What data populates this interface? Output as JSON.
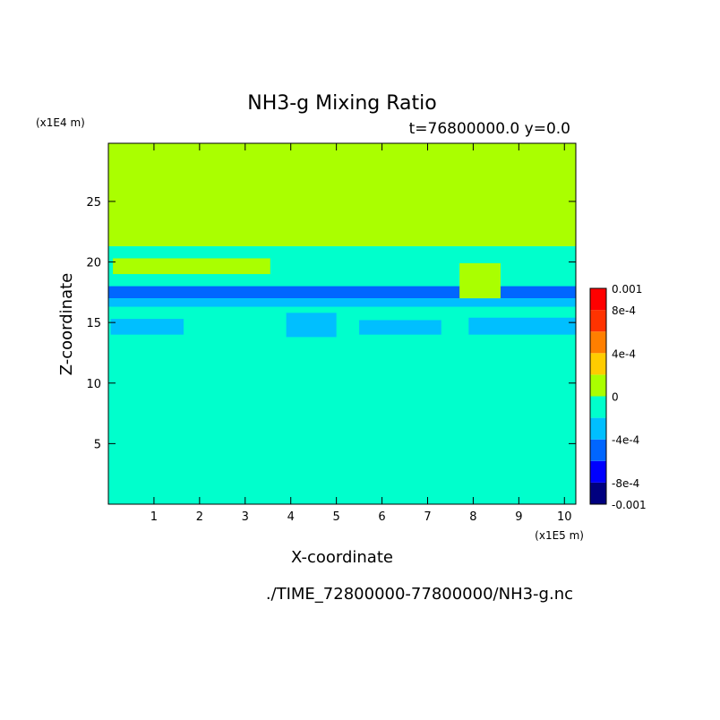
{
  "chart_data": {
    "type": "heatmap",
    "title": "NH3-g Mixing Ratio",
    "subtitle": "t=76800000.0 y=0.0",
    "xlabel": "X-coordinate",
    "ylabel": "Z-coordinate",
    "x_unit": "(x1E5 m)",
    "y_unit": "(x1E4 m)",
    "xlim": [
      0,
      10.25
    ],
    "ylim": [
      0,
      29.8
    ],
    "xticks": [
      1,
      2,
      3,
      4,
      5,
      6,
      7,
      8,
      9,
      10
    ],
    "yticks": [
      5,
      10,
      15,
      20,
      25
    ],
    "footer": "./TIME_72800000-77800000/NH3-g.nc",
    "colorbar": {
      "labels": [
        "0.001",
        "8e-4",
        "4e-4",
        "0",
        "-4e-4",
        "-8e-4",
        "-0.001"
      ],
      "label_values": [
        0.001,
        0.0008,
        0.0004,
        0,
        -0.0004,
        -0.0008,
        -0.001
      ],
      "levels": [
        -0.001,
        -0.0008,
        -0.0006,
        -0.0004,
        -0.0002,
        0,
        0.0002,
        0.0004,
        0.0006,
        0.0008,
        0.001
      ],
      "colors": [
        "#00007f",
        "#0000ff",
        "#0066ff",
        "#00bfff",
        "#00ffcc",
        "#aaff00",
        "#ffcc00",
        "#ff7f00",
        "#ff3300",
        "#ff0000"
      ]
    },
    "regions": [
      {
        "level": "0 to 2e-4",
        "color": "#aaff00",
        "z_range": [
          21.3,
          29.8
        ],
        "x_range": [
          0,
          10.25
        ]
      },
      {
        "level": "-2e-4 to 0",
        "color": "#00ffcc",
        "z_range": [
          0,
          21.3
        ],
        "x_range": [
          0,
          10.25
        ]
      },
      {
        "level": "-8e-4 to -6e-4",
        "color": "#0066ff",
        "z_range": [
          17.0,
          18.0
        ],
        "x_range": [
          0,
          10.25
        ]
      },
      {
        "level": "-6e-4 to -4e-4",
        "color": "#00bfff",
        "z_range": [
          16.3,
          17.0
        ],
        "x_range": [
          0,
          10.25
        ]
      },
      {
        "level": "-6e-4 to -4e-4",
        "color": "#00bfff",
        "z_range": [
          14.0,
          15.3
        ],
        "x_range": [
          0.05,
          1.65
        ]
      },
      {
        "level": "-6e-4 to -4e-4",
        "color": "#00bfff",
        "z_range": [
          13.8,
          15.8
        ],
        "x_range": [
          3.9,
          5.0
        ]
      },
      {
        "level": "-6e-4 to -4e-4",
        "color": "#00bfff",
        "z_range": [
          14.0,
          15.2
        ],
        "x_range": [
          5.5,
          7.3
        ]
      },
      {
        "level": "-6e-4 to -4e-4",
        "color": "#00bfff",
        "z_range": [
          14.0,
          15.4
        ],
        "x_range": [
          7.9,
          10.25
        ]
      },
      {
        "level": "0 to 2e-4",
        "color": "#aaff00",
        "z_range": [
          19.0,
          20.3
        ],
        "x_range": [
          0.1,
          3.55
        ]
      },
      {
        "level": "0 to 2e-4",
        "color": "#aaff00",
        "z_range": [
          17.0,
          19.9
        ],
        "x_range": [
          7.7,
          8.6
        ]
      }
    ]
  }
}
